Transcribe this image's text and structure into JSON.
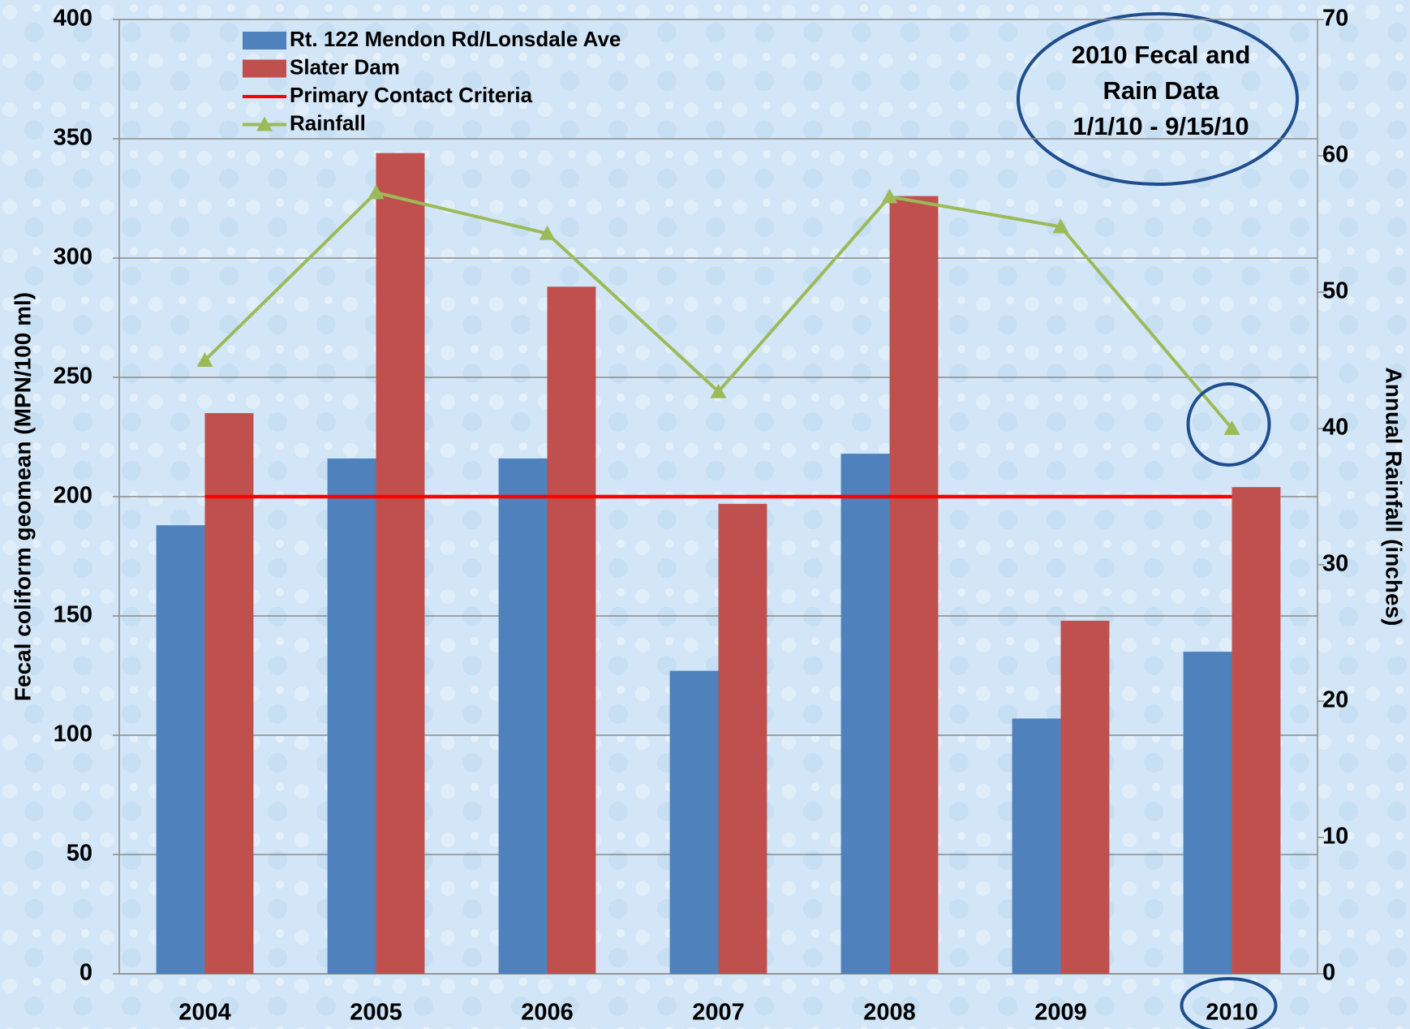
{
  "chart_data": {
    "type": "bar",
    "categories": [
      "2004",
      "2005",
      "2006",
      "2007",
      "2008",
      "2009",
      "2010"
    ],
    "series": [
      {
        "name": "Rt. 122 Mendon Rd/Lonsdale Ave",
        "color": "#4f81bd",
        "type": "bar",
        "values": [
          188,
          216,
          216,
          127,
          218,
          107,
          135
        ]
      },
      {
        "name": "Slater Dam",
        "color": "#c0504d",
        "type": "bar",
        "values": [
          235,
          344,
          288,
          197,
          326,
          148,
          204
        ]
      },
      {
        "name": "Primary Contact Criteria",
        "color": "#ff0000",
        "type": "line",
        "values": [
          200,
          200,
          200,
          200,
          200,
          200,
          200
        ]
      },
      {
        "name": "Rainfall",
        "color": "#9bbb59",
        "type": "line",
        "marker": "triangle",
        "axis": "y2",
        "values": [
          45,
          57.3,
          54.3,
          42.7,
          57,
          54.8,
          40
        ]
      }
    ],
    "ylabel": "Fecal coliform geomean (MPN/100 ml)",
    "y2label": "Annual Rainfall (inches)",
    "annotation": [
      "2010 Fecal and",
      "Rain Data",
      "1/1/10 - 9/15/10"
    ],
    "ylim": [
      0,
      400
    ],
    "yticks": [
      0,
      50,
      100,
      150,
      200,
      250,
      300,
      350,
      400
    ],
    "y2lim": [
      0,
      70
    ],
    "y2ticks": [
      0,
      10,
      20,
      30,
      40,
      50,
      60,
      70
    ],
    "grid": true,
    "legend": "upper left"
  }
}
